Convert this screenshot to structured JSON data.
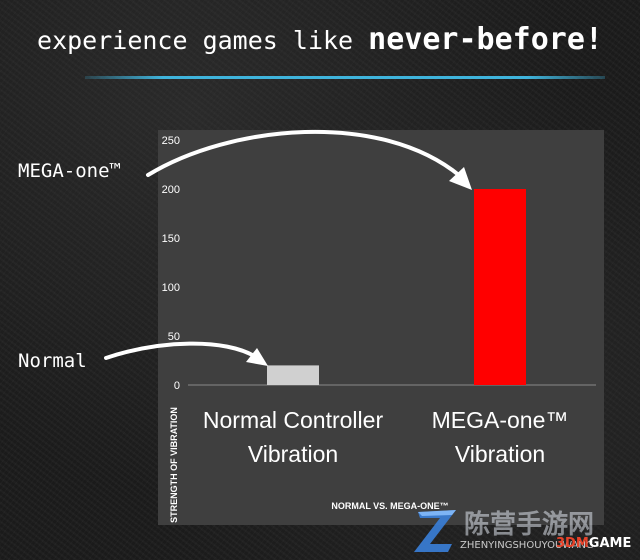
{
  "headline": {
    "prefix": "experience games like",
    "emphasis": "never-before!"
  },
  "callouts": {
    "mega": "MEGA-one™",
    "normal": "Normal"
  },
  "colors": {
    "divider": "#3fb4dc",
    "chart_background": "#3f3f3f",
    "normal_bar": "#d0d0d0",
    "mega_bar": "#ff0000"
  },
  "chart_data": {
    "type": "bar",
    "categories": [
      "Normal Controller Vibration",
      "MEGA-one™ Vibration"
    ],
    "category_lines": [
      [
        "Normal Controller",
        "Vibration"
      ],
      [
        "MEGA-one™",
        "Vibration"
      ]
    ],
    "values": [
      20,
      200
    ],
    "bar_colors": [
      "#d0d0d0",
      "#ff0000"
    ],
    "title": "",
    "xlabel": "NORMAL VS. MEGA-ONE™",
    "ylabel": "STRENGTH OF VIBRATION",
    "ylim": [
      0,
      250
    ],
    "yticks": [
      0,
      50,
      100,
      150,
      200,
      250
    ],
    "grid": false,
    "legend": "none"
  },
  "watermark": {
    "chinese": "陈营手游网",
    "subtitle": "ZHENYINGSHOUYOUWANG",
    "brand_number": "3DM",
    "brand_word": "GAME",
    "logo_icon": "z-logo-icon"
  }
}
